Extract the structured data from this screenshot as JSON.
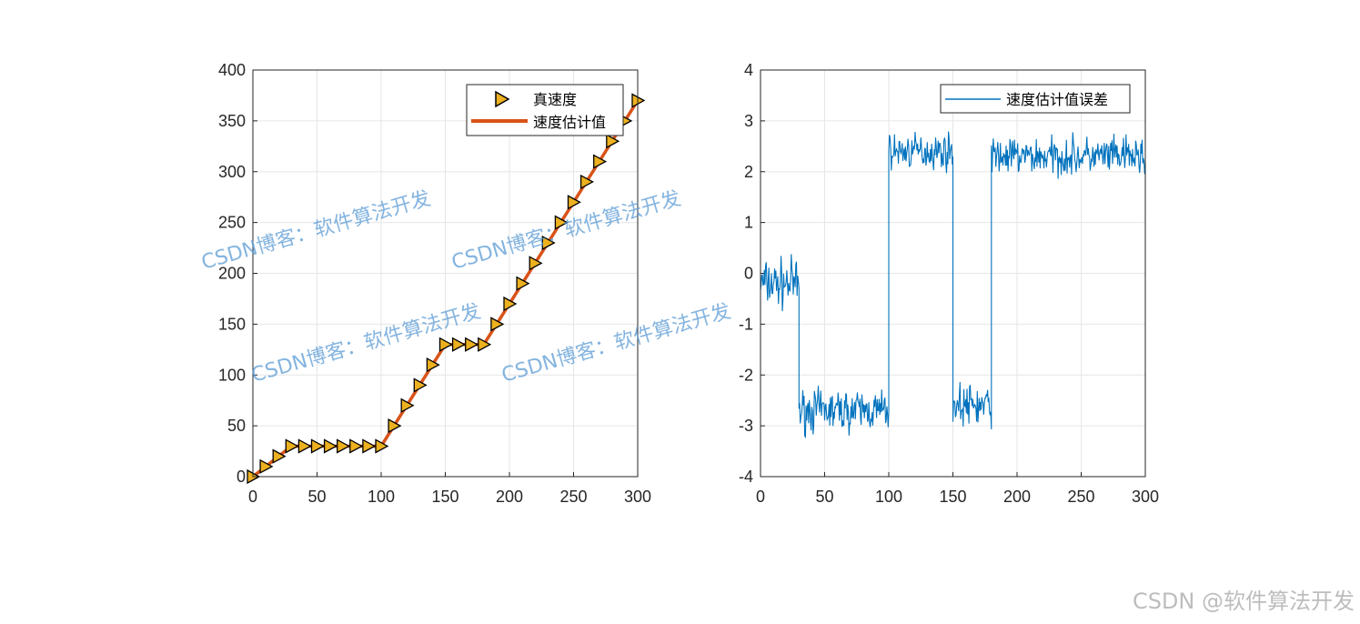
{
  "chart_data": [
    {
      "type": "line",
      "xlim": [
        0,
        300
      ],
      "ylim": [
        0,
        400
      ],
      "xticks": [
        0,
        50,
        100,
        150,
        200,
        250,
        300
      ],
      "yticks": [
        0,
        50,
        100,
        150,
        200,
        250,
        300,
        350,
        400
      ],
      "grid": true,
      "legend_position": "top-right",
      "series": [
        {
          "name": "真速度",
          "style": "markers",
          "marker": "triangle-right",
          "color": "#edb120",
          "x": [
            0,
            10,
            20,
            30,
            40,
            50,
            60,
            70,
            80,
            90,
            100,
            110,
            120,
            130,
            140,
            150,
            160,
            170,
            180,
            190,
            200,
            210,
            220,
            230,
            240,
            250,
            260,
            270,
            280,
            290,
            300
          ],
          "y": [
            0,
            10,
            20,
            30,
            30,
            30,
            30,
            30,
            30,
            30,
            30,
            50,
            70,
            90,
            110,
            130,
            130,
            130,
            130,
            150,
            170,
            190,
            210,
            230,
            250,
            270,
            290,
            310,
            330,
            350,
            370
          ]
        },
        {
          "name": "速度估计值",
          "style": "line",
          "color": "#d95319",
          "x": [
            0,
            10,
            20,
            30,
            100,
            150,
            180,
            300
          ],
          "y": [
            0,
            10,
            20,
            30,
            30,
            130,
            130,
            370
          ]
        }
      ]
    },
    {
      "type": "line",
      "xlim": [
        0,
        300
      ],
      "ylim": [
        -4,
        4
      ],
      "xticks": [
        0,
        50,
        100,
        150,
        200,
        250,
        300
      ],
      "yticks": [
        -4,
        -3,
        -2,
        -1,
        0,
        1,
        2,
        3,
        4
      ],
      "grid": true,
      "legend_position": "top-right",
      "series": [
        {
          "name": "速度估计值误差",
          "color": "#0072bd",
          "segments": [
            {
              "x": [
                0,
                30
              ],
              "mean": -0.2,
              "spread": 0.7
            },
            {
              "x": [
                30,
                100
              ],
              "mean": -2.7,
              "spread": 0.6
            },
            {
              "x": [
                100,
                150
              ],
              "mean": 2.4,
              "spread": 0.5
            },
            {
              "x": [
                150,
                180
              ],
              "mean": -2.6,
              "spread": 0.6
            },
            {
              "x": [
                180,
                300
              ],
              "mean": 2.3,
              "spread": 0.55
            }
          ]
        }
      ]
    }
  ],
  "watermark": "CSDN博客：软件算法开发",
  "credit": "CSDN @软件算法开发"
}
